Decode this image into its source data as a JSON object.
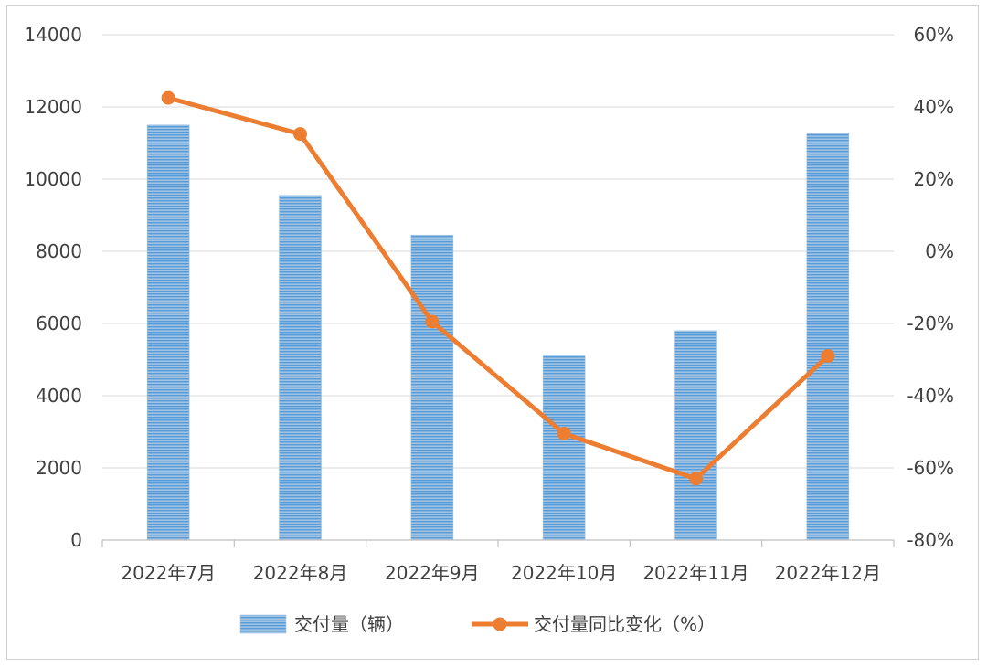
{
  "chart_data": {
    "type": "bar",
    "categories": [
      "2022年7月",
      "2022年8月",
      "2022年9月",
      "2022年10月",
      "2022年11月",
      "2022年12月"
    ],
    "series": [
      {
        "name": "交付量（辆）",
        "type": "bar",
        "axis": "left",
        "color": "#5b9bd5",
        "values": [
          11500,
          9550,
          8450,
          5100,
          5800,
          11280
        ]
      },
      {
        "name": "交付量同比变化（%）",
        "type": "line",
        "axis": "right",
        "color": "#ed7d31",
        "values": [
          42.5,
          32.5,
          -19.5,
          -50.5,
          -63,
          -29
        ]
      }
    ],
    "y_left": {
      "min": 0,
      "max": 14000,
      "ticks": [
        "0",
        "2000",
        "4000",
        "6000",
        "8000",
        "10000",
        "12000",
        "14000"
      ]
    },
    "y_right": {
      "min": -80,
      "max": 60,
      "ticks": [
        "-80%",
        "-60%",
        "-40%",
        "-20%",
        "0%",
        "20%",
        "40%",
        "60%"
      ]
    },
    "grid": true,
    "legend_position": "bottom",
    "title": "",
    "xlabel": "",
    "ylabel": ""
  }
}
